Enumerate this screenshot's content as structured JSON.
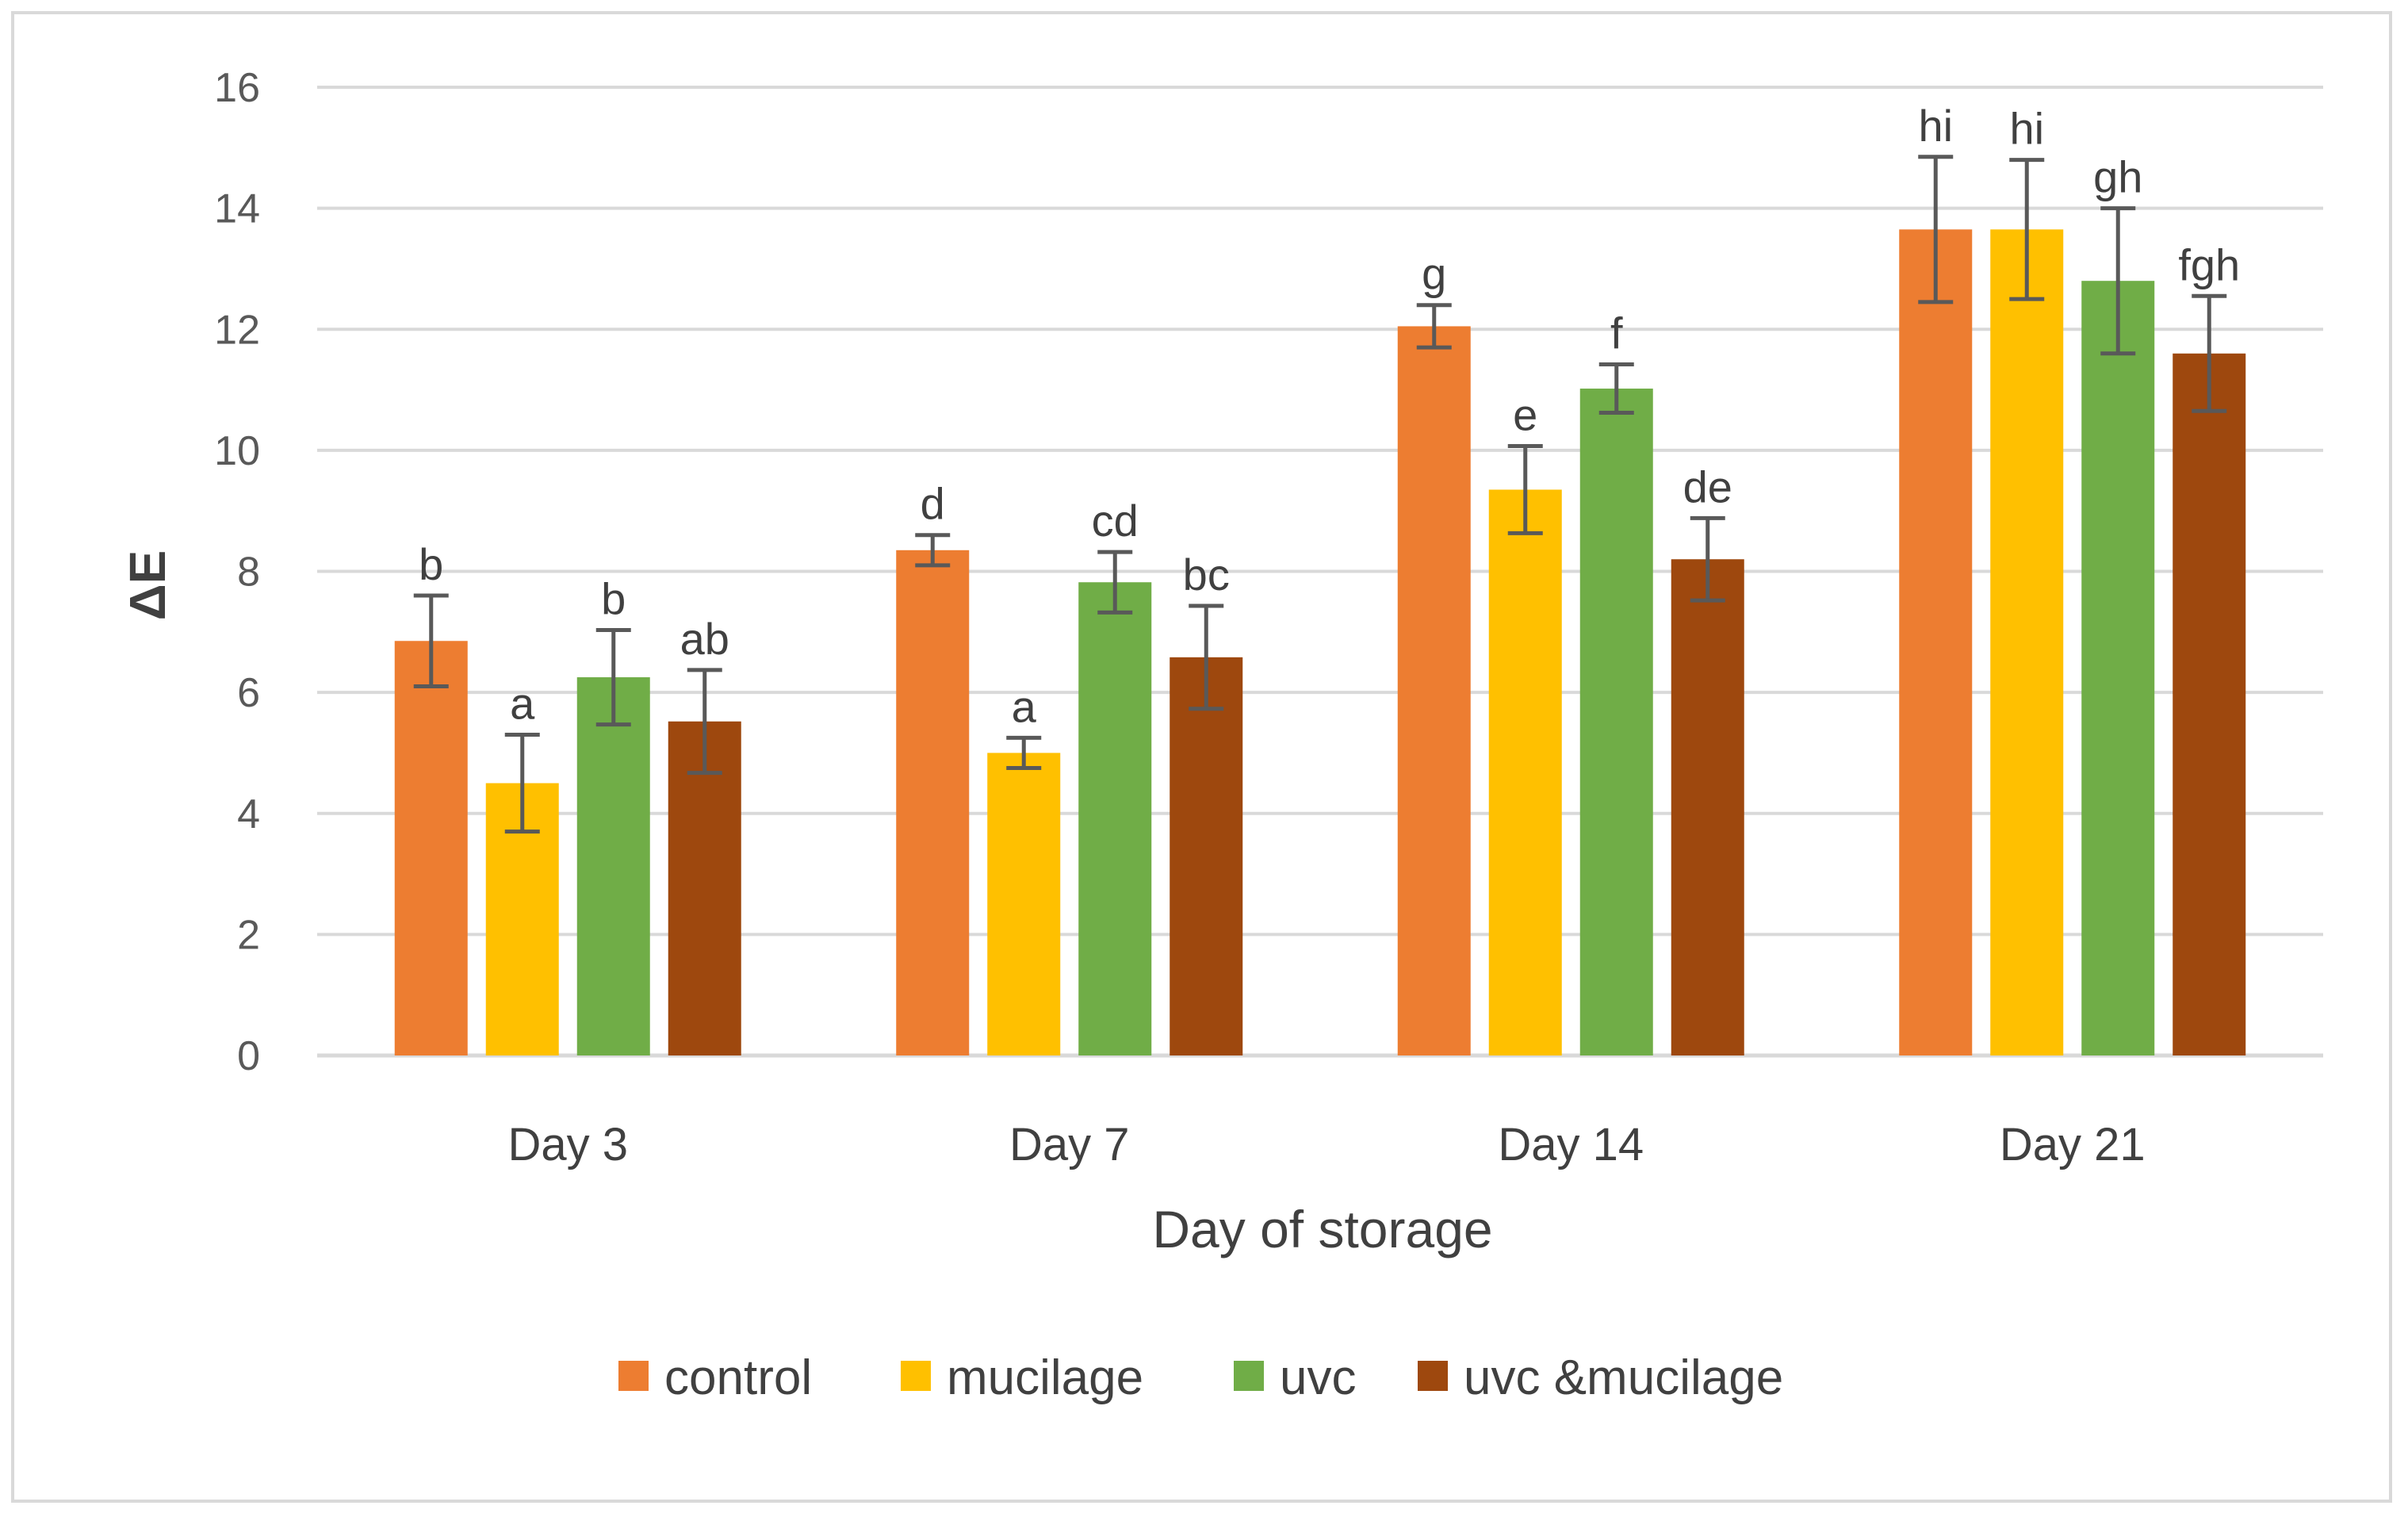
{
  "chart_data": {
    "type": "bar",
    "title": "",
    "xlabel": "Day of storage",
    "ylabel": "ΔE",
    "ylim": [
      0,
      16
    ],
    "yticks": [
      0,
      2,
      4,
      6,
      8,
      10,
      12,
      14,
      16
    ],
    "grid": true,
    "legend_position": "bottom",
    "categories": [
      "Day 3",
      "Day 7",
      "Day 14",
      "Day 21"
    ],
    "series": [
      {
        "name": "control",
        "color": "#ed7d31",
        "values": [
          6.85,
          8.35,
          12.05,
          13.65
        ],
        "errors": [
          0.75,
          0.25,
          0.35,
          1.2
        ],
        "labels": [
          "b",
          "d",
          "g",
          "hi"
        ]
      },
      {
        "name": "mucilage",
        "color": "#ffc000",
        "values": [
          4.5,
          5.0,
          9.35,
          13.65
        ],
        "errors": [
          0.8,
          0.25,
          0.72,
          1.15
        ],
        "labels": [
          "a",
          "a",
          "e",
          "hi"
        ]
      },
      {
        "name": "uvc",
        "color": "#70ad47",
        "values": [
          6.25,
          7.82,
          11.02,
          12.8
        ],
        "errors": [
          0.78,
          0.5,
          0.4,
          1.2
        ],
        "labels": [
          "b",
          "cd",
          "f",
          "gh"
        ]
      },
      {
        "name": "uvc &mucilage",
        "color": "#9e480e",
        "values": [
          5.52,
          6.58,
          8.2,
          11.6
        ],
        "errors": [
          0.85,
          0.85,
          0.68,
          0.95
        ],
        "labels": [
          "ab",
          "bc",
          "de",
          "fgh"
        ]
      }
    ]
  }
}
